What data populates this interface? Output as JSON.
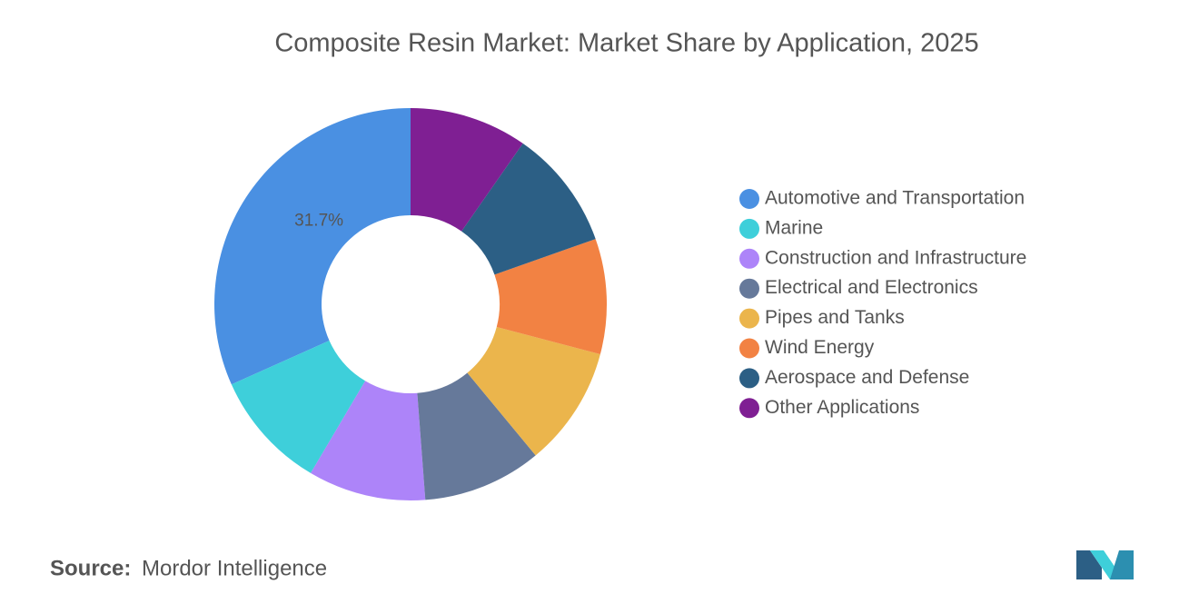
{
  "chart_data": {
    "type": "donut",
    "title": "Composite Resin Market: Market Share by Application, 2025",
    "categories": [
      "Automotive and Transportation",
      "Marine",
      "Construction and Infrastructure",
      "Electrical and Electronics",
      "Pipes and Tanks",
      "Wind Energy",
      "Aerospace and Defense",
      "Other Applications"
    ],
    "values": [
      31.7,
      9.8,
      9.7,
      9.8,
      9.9,
      9.5,
      9.9,
      9.7
    ],
    "value_labels": [
      "31.7%",
      null,
      null,
      null,
      null,
      null,
      null,
      null
    ],
    "colors": [
      "#4a90e2",
      "#3ecfda",
      "#ad84f9",
      "#66799a",
      "#ebb54c",
      "#f28243",
      "#2c5f85",
      "#7f1f93"
    ],
    "legend": "right"
  },
  "source": {
    "label": "Source:",
    "text": "Mordor Intelligence"
  }
}
